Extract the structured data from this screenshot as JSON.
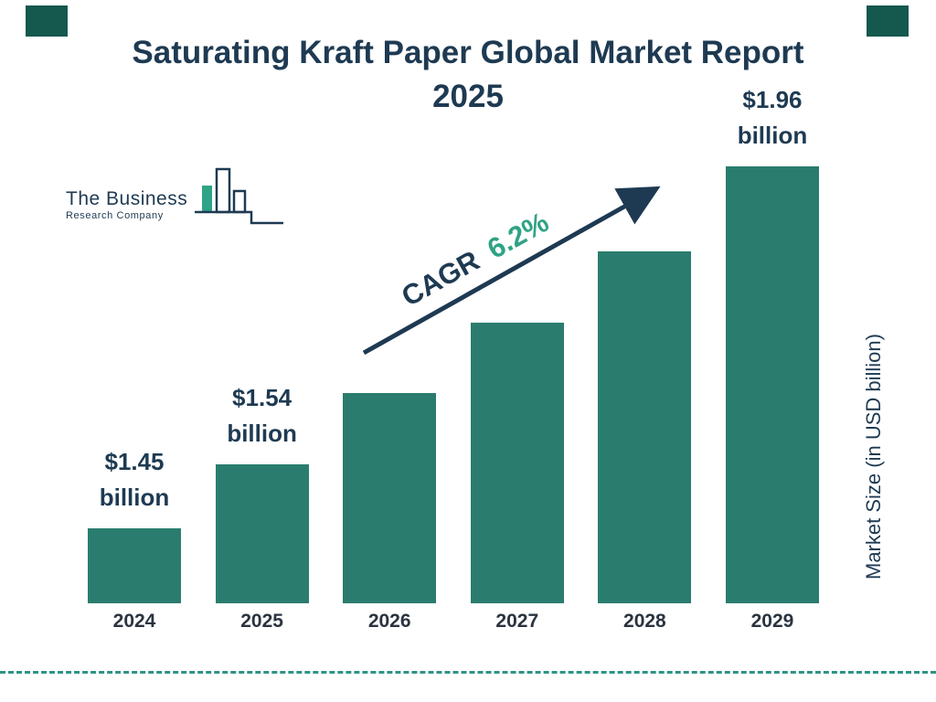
{
  "title": {
    "line1": "Saturating Kraft Paper Global Market Report",
    "line2": "2025"
  },
  "logo": {
    "line1": "The Business",
    "line2": "Research Company"
  },
  "cagr": {
    "label": "CAGR",
    "value": "6.2%"
  },
  "colors": {
    "navy": "#1e3a52",
    "teal": "#2a7d6e",
    "green": "#2fa385",
    "dash": "#2f9485",
    "corner": "#14584e"
  },
  "chart_data": {
    "type": "bar",
    "title": "Saturating Kraft Paper Global Market Report 2025",
    "categories": [
      "2024",
      "2025",
      "2026",
      "2027",
      "2028",
      "2029"
    ],
    "values": [
      1.45,
      1.54,
      1.64,
      1.74,
      1.84,
      1.96
    ],
    "unit": "USD billion",
    "xlabel": "",
    "ylabel": "Market Size (in USD billion)",
    "legend": false,
    "grid": false,
    "bar_color": "#2a7d6e",
    "bar_labels": [
      {
        "amount": "$1.45",
        "unit": "billion"
      },
      {
        "amount": "$1.54",
        "unit": "billion"
      },
      null,
      null,
      null,
      {
        "amount": "$1.96",
        "unit": "billion"
      }
    ],
    "annotations": [
      {
        "type": "growth-arrow",
        "text": "CAGR 6.2%"
      }
    ]
  }
}
